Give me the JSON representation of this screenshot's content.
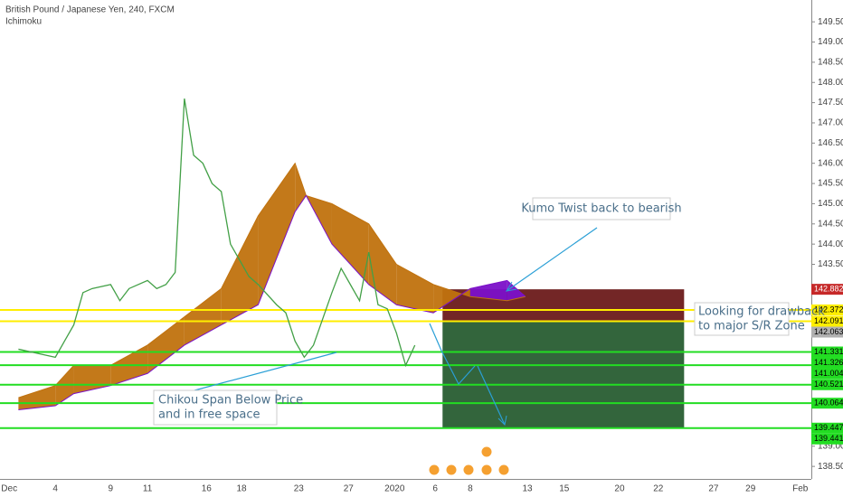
{
  "header": {
    "symbol": "British Pound / Japanese Yen, 240, FXCM",
    "indicator": "Ichimoku"
  },
  "chart_data": {
    "type": "line",
    "xlim": [
      -1,
      43
    ],
    "ylim": [
      138.19,
      150.04
    ],
    "xticks": [
      {
        "value": -0.5,
        "label": "Dec"
      },
      {
        "value": 2,
        "label": "4"
      },
      {
        "value": 5,
        "label": "9"
      },
      {
        "value": 7,
        "label": "11"
      },
      {
        "value": 10.2,
        "label": "16"
      },
      {
        "value": 12.1,
        "label": "18"
      },
      {
        "value": 15.2,
        "label": "23"
      },
      {
        "value": 17.9,
        "label": "27"
      },
      {
        "value": 20.4,
        "label": "2020"
      },
      {
        "value": 22.6,
        "label": "6"
      },
      {
        "value": 24.5,
        "label": "8"
      },
      {
        "value": 27.6,
        "label": "13"
      },
      {
        "value": 29.6,
        "label": "15"
      },
      {
        "value": 32.6,
        "label": "20"
      },
      {
        "value": 34.7,
        "label": "22"
      },
      {
        "value": 37.7,
        "label": "27"
      },
      {
        "value": 39.7,
        "label": "29"
      },
      {
        "value": 42.4,
        "label": "Feb"
      }
    ],
    "yticks": [
      {
        "value": 149.5,
        "label": "149.500"
      },
      {
        "value": 149,
        "label": "149.000"
      },
      {
        "value": 148.5,
        "label": "148.500"
      },
      {
        "value": 148,
        "label": "148.000"
      },
      {
        "value": 147.5,
        "label": "147.500"
      },
      {
        "value": 147,
        "label": "147.000"
      },
      {
        "value": 146.5,
        "label": "146.500"
      },
      {
        "value": 146,
        "label": "146.000"
      },
      {
        "value": 145.5,
        "label": "145.500"
      },
      {
        "value": 145,
        "label": "145.000"
      },
      {
        "value": 144.5,
        "label": "144.500"
      },
      {
        "value": 144,
        "label": "144.000"
      },
      {
        "value": 143.5,
        "label": "143.500"
      },
      {
        "value": 139,
        "label": "139.000"
      },
      {
        "value": 138.5,
        "label": "138.500"
      }
    ],
    "price": {
      "color": "#43a047",
      "x": [
        0,
        1,
        2,
        2.5,
        3,
        3.5,
        4,
        5,
        5.5,
        6,
        7,
        7.5,
        8,
        8.5,
        9,
        9.5,
        10,
        10.5,
        11,
        11.5,
        12,
        12.5,
        13,
        14,
        14.5,
        15,
        15.5,
        16,
        17,
        17.5,
        18,
        18.5,
        19,
        19.5,
        20,
        20.5,
        21,
        21.5
      ],
      "values": [
        141.4,
        141.3,
        141.2,
        141.6,
        142.0,
        142.8,
        142.9,
        143.0,
        142.6,
        142.9,
        143.1,
        142.9,
        143.0,
        143.3,
        147.6,
        146.2,
        146.0,
        145.5,
        145.3,
        144.0,
        143.6,
        143.2,
        143.0,
        142.5,
        142.3,
        141.6,
        141.2,
        141.5,
        142.8,
        143.4,
        143.0,
        142.6,
        143.8,
        142.5,
        142.4,
        141.8,
        141.0,
        141.5
      ]
    },
    "cloud": {
      "bull_color": "#c0720e",
      "bear_color": "#7b10c8",
      "x": [
        0,
        2,
        3,
        5,
        7,
        9,
        11,
        13,
        15,
        15.6,
        17,
        19,
        20.5,
        22.5,
        24.5,
        26.5,
        27.5
      ],
      "span_a": [
        140.2,
        140.5,
        141.0,
        141.0,
        141.5,
        142.2,
        142.9,
        144.7,
        146.0,
        145.2,
        145.0,
        144.5,
        143.5,
        143.0,
        142.7,
        142.6,
        142.7
      ],
      "span_b": [
        139.9,
        140.0,
        140.3,
        140.5,
        140.8,
        141.5,
        142.0,
        142.5,
        144.8,
        145.2,
        144.0,
        143.0,
        142.5,
        142.3,
        142.9,
        143.1,
        142.7
      ]
    },
    "levels": [
      {
        "value": 142.372,
        "color": "#ffee00"
      },
      {
        "value": 142.091,
        "color": "#ffee00"
      },
      {
        "value": 141.331,
        "color": "#22dd22"
      },
      {
        "value": 141.004,
        "color": "#22dd22"
      },
      {
        "value": 140.521,
        "color": "#22dd22"
      },
      {
        "value": 140.064,
        "color": "#22dd22"
      },
      {
        "value": 139.447,
        "color": "#22dd22"
      }
    ],
    "markers": [
      {
        "value": 142.882,
        "color": "#c62828"
      },
      {
        "value": 142.063,
        "color": "#b0b0b0"
      },
      {
        "value": 141.326,
        "color": "#22dd22"
      },
      {
        "value": 139.441,
        "color": "#22dd22"
      }
    ],
    "position": {
      "entry": 142.091,
      "stop": 142.882,
      "target": 139.447,
      "x": [
        23,
        36.1
      ],
      "stop_color": "#5a0000",
      "target_color": "#0f4a1a"
    },
    "annotations": {
      "kumo": "Kumo Twist back to bearish",
      "drawback": [
        "Looking for drawback",
        "to major S/R Zone"
      ],
      "chikou": [
        "Chikou Span Below Price",
        "and in free space"
      ]
    }
  }
}
